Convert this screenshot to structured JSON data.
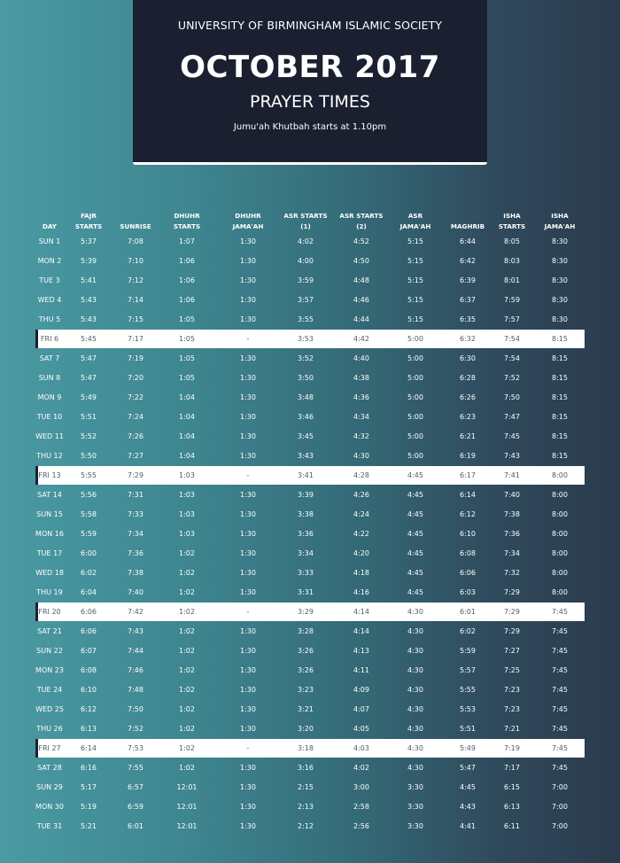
{
  "header": {
    "organization": "UNIVERSITY OF BIRMINGHAM ISLAMIC SOCIETY",
    "month": "OCTOBER 2017",
    "subtitle": "PRAYER TIMES",
    "jumuah_note": "Jumu'ah Khutbah starts at 1.10pm"
  },
  "colors": {
    "header_bg": "#1b2031",
    "friday_row_bg": "#ffffff",
    "background_left": "#4a9aa4",
    "background_right": "#2b3a4d"
  },
  "columns": [
    [
      "DAY"
    ],
    [
      "FAJR",
      "STARTS"
    ],
    [
      "SUNRISE"
    ],
    [
      "DHUHR",
      "STARTS"
    ],
    [
      "DHUHR",
      "JAMA'AH"
    ],
    [
      "ASR STARTS",
      "(1)"
    ],
    [
      "ASR STARTS",
      "(2)"
    ],
    [
      "ASR",
      "JAMA'AH"
    ],
    [
      "MAGHRIB"
    ],
    [
      "ISHA",
      "STARTS"
    ],
    [
      "ISHA",
      "JAMA'AH"
    ]
  ],
  "rows": [
    {
      "day": "SUN 1",
      "fajr": "5:37",
      "sunrise": "7:08",
      "dhuhr": "1:07",
      "dhuhr_jamaah": "1:30",
      "asr1": "4:02",
      "asr2": "4:52",
      "asr_jamaah": "5:15",
      "maghrib": "6:44",
      "isha": "8:05",
      "isha_jamaah": "8:30",
      "friday": false
    },
    {
      "day": "MON 2",
      "fajr": "5:39",
      "sunrise": "7:10",
      "dhuhr": "1:06",
      "dhuhr_jamaah": "1:30",
      "asr1": "4:00",
      "asr2": "4:50",
      "asr_jamaah": "5:15",
      "maghrib": "6:42",
      "isha": "8:03",
      "isha_jamaah": "8:30",
      "friday": false
    },
    {
      "day": "TUE 3",
      "fajr": "5:41",
      "sunrise": "7:12",
      "dhuhr": "1:06",
      "dhuhr_jamaah": "1:30",
      "asr1": "3:59",
      "asr2": "4:48",
      "asr_jamaah": "5:15",
      "maghrib": "6:39",
      "isha": "8:01",
      "isha_jamaah": "8:30",
      "friday": false
    },
    {
      "day": "WED 4",
      "fajr": "5:43",
      "sunrise": "7:14",
      "dhuhr": "1:06",
      "dhuhr_jamaah": "1:30",
      "asr1": "3:57",
      "asr2": "4:46",
      "asr_jamaah": "5:15",
      "maghrib": "6:37",
      "isha": "7:59",
      "isha_jamaah": "8:30",
      "friday": false
    },
    {
      "day": "THU 5",
      "fajr": "5:43",
      "sunrise": "7:15",
      "dhuhr": "1:05",
      "dhuhr_jamaah": "1:30",
      "asr1": "3:55",
      "asr2": "4:44",
      "asr_jamaah": "5:15",
      "maghrib": "6:35",
      "isha": "7:57",
      "isha_jamaah": "8:30",
      "friday": false
    },
    {
      "day": "FRI 6",
      "fajr": "5:45",
      "sunrise": "7:17",
      "dhuhr": "1:05",
      "dhuhr_jamaah": "-",
      "asr1": "3:53",
      "asr2": "4:42",
      "asr_jamaah": "5:00",
      "maghrib": "6:32",
      "isha": "7:54",
      "isha_jamaah": "8:15",
      "friday": true
    },
    {
      "day": "SAT 7",
      "fajr": "5:47",
      "sunrise": "7:19",
      "dhuhr": "1:05",
      "dhuhr_jamaah": "1:30",
      "asr1": "3:52",
      "asr2": "4:40",
      "asr_jamaah": "5:00",
      "maghrib": "6:30",
      "isha": "7:54",
      "isha_jamaah": "8:15",
      "friday": false
    },
    {
      "day": "SUN 8",
      "fajr": "5:47",
      "sunrise": "7:20",
      "dhuhr": "1:05",
      "dhuhr_jamaah": "1:30",
      "asr1": "3:50",
      "asr2": "4:38",
      "asr_jamaah": "5:00",
      "maghrib": "6:28",
      "isha": "7:52",
      "isha_jamaah": "8:15",
      "friday": false
    },
    {
      "day": "MON 9",
      "fajr": "5:49",
      "sunrise": "7:22",
      "dhuhr": "1:04",
      "dhuhr_jamaah": "1:30",
      "asr1": "3:48",
      "asr2": "4:36",
      "asr_jamaah": "5:00",
      "maghrib": "6:26",
      "isha": "7:50",
      "isha_jamaah": "8:15",
      "friday": false
    },
    {
      "day": "TUE 10",
      "fajr": "5:51",
      "sunrise": "7:24",
      "dhuhr": "1:04",
      "dhuhr_jamaah": "1:30",
      "asr1": "3:46",
      "asr2": "4:34",
      "asr_jamaah": "5:00",
      "maghrib": "6:23",
      "isha": "7:47",
      "isha_jamaah": "8:15",
      "friday": false
    },
    {
      "day": "WED 11",
      "fajr": "5:52",
      "sunrise": "7:26",
      "dhuhr": "1:04",
      "dhuhr_jamaah": "1:30",
      "asr1": "3:45",
      "asr2": "4:32",
      "asr_jamaah": "5:00",
      "maghrib": "6:21",
      "isha": "7:45",
      "isha_jamaah": "8:15",
      "friday": false
    },
    {
      "day": "THU 12",
      "fajr": "5:50",
      "sunrise": "7:27",
      "dhuhr": "1:04",
      "dhuhr_jamaah": "1:30",
      "asr1": "3:43",
      "asr2": "4:30",
      "asr_jamaah": "5:00",
      "maghrib": "6:19",
      "isha": "7:43",
      "isha_jamaah": "8:15",
      "friday": false
    },
    {
      "day": "FRI 13",
      "fajr": "5:55",
      "sunrise": "7:29",
      "dhuhr": "1:03",
      "dhuhr_jamaah": "-",
      "asr1": "3:41",
      "asr2": "4:28",
      "asr_jamaah": "4:45",
      "maghrib": "6:17",
      "isha": "7:41",
      "isha_jamaah": "8:00",
      "friday": true
    },
    {
      "day": "SAT 14",
      "fajr": "5:56",
      "sunrise": "7:31",
      "dhuhr": "1:03",
      "dhuhr_jamaah": "1:30",
      "asr1": "3:39",
      "asr2": "4:26",
      "asr_jamaah": "4:45",
      "maghrib": "6:14",
      "isha": "7:40",
      "isha_jamaah": "8:00",
      "friday": false
    },
    {
      "day": "SUN 15",
      "fajr": "5:58",
      "sunrise": "7:33",
      "dhuhr": "1:03",
      "dhuhr_jamaah": "1:30",
      "asr1": "3:38",
      "asr2": "4:24",
      "asr_jamaah": "4:45",
      "maghrib": "6:12",
      "isha": "7:38",
      "isha_jamaah": "8:00",
      "friday": false
    },
    {
      "day": "MON 16",
      "fajr": "5:59",
      "sunrise": "7:34",
      "dhuhr": "1:03",
      "dhuhr_jamaah": "1:30",
      "asr1": "3:36",
      "asr2": "4:22",
      "asr_jamaah": "4:45",
      "maghrib": "6:10",
      "isha": "7:36",
      "isha_jamaah": "8:00",
      "friday": false
    },
    {
      "day": "TUE 17",
      "fajr": "6:00",
      "sunrise": "7:36",
      "dhuhr": "1:02",
      "dhuhr_jamaah": "1:30",
      "asr1": "3:34",
      "asr2": "4:20",
      "asr_jamaah": "4:45",
      "maghrib": "6:08",
      "isha": "7:34",
      "isha_jamaah": "8:00",
      "friday": false
    },
    {
      "day": "WED 18",
      "fajr": "6:02",
      "sunrise": "7:38",
      "dhuhr": "1:02",
      "dhuhr_jamaah": "1:30",
      "asr1": "3:33",
      "asr2": "4:18",
      "asr_jamaah": "4:45",
      "maghrib": "6:06",
      "isha": "7:32",
      "isha_jamaah": "8:00",
      "friday": false
    },
    {
      "day": "THU 19",
      "fajr": "6:04",
      "sunrise": "7:40",
      "dhuhr": "1:02",
      "dhuhr_jamaah": "1:30",
      "asr1": "3:31",
      "asr2": "4:16",
      "asr_jamaah": "4:45",
      "maghrib": "6:03",
      "isha": "7:29",
      "isha_jamaah": "8:00",
      "friday": false
    },
    {
      "day": "FRI 20",
      "fajr": "6:06",
      "sunrise": "7:42",
      "dhuhr": "1:02",
      "dhuhr_jamaah": "-",
      "asr1": "3:29",
      "asr2": "4:14",
      "asr_jamaah": "4:30",
      "maghrib": "6:01",
      "isha": "7:29",
      "isha_jamaah": "7:45",
      "friday": true
    },
    {
      "day": "SAT 21",
      "fajr": "6:06",
      "sunrise": "7:43",
      "dhuhr": "1:02",
      "dhuhr_jamaah": "1:30",
      "asr1": "3:28",
      "asr2": "4:14",
      "asr_jamaah": "4:30",
      "maghrib": "6:02",
      "isha": "7:29",
      "isha_jamaah": "7:45",
      "friday": false
    },
    {
      "day": "SUN 22",
      "fajr": "6:07",
      "sunrise": "7:44",
      "dhuhr": "1:02",
      "dhuhr_jamaah": "1:30",
      "asr1": "3:26",
      "asr2": "4:13",
      "asr_jamaah": "4:30",
      "maghrib": "5:59",
      "isha": "7:27",
      "isha_jamaah": "7:45",
      "friday": false
    },
    {
      "day": "MON 23",
      "fajr": "6:08",
      "sunrise": "7:46",
      "dhuhr": "1:02",
      "dhuhr_jamaah": "1:30",
      "asr1": "3:26",
      "asr2": "4:11",
      "asr_jamaah": "4:30",
      "maghrib": "5:57",
      "isha": "7:25",
      "isha_jamaah": "7:45",
      "friday": false
    },
    {
      "day": "TUE 24",
      "fajr": "6:10",
      "sunrise": "7:48",
      "dhuhr": "1:02",
      "dhuhr_jamaah": "1:30",
      "asr1": "3:23",
      "asr2": "4:09",
      "asr_jamaah": "4:30",
      "maghrib": "5:55",
      "isha": "7:23",
      "isha_jamaah": "7:45",
      "friday": false
    },
    {
      "day": "WED 25",
      "fajr": "6:12",
      "sunrise": "7:50",
      "dhuhr": "1:02",
      "dhuhr_jamaah": "1:30",
      "asr1": "3:21",
      "asr2": "4:07",
      "asr_jamaah": "4:30",
      "maghrib": "5:53",
      "isha": "7:23",
      "isha_jamaah": "7:45",
      "friday": false
    },
    {
      "day": "THU 26",
      "fajr": "6:13",
      "sunrise": "7:52",
      "dhuhr": "1:02",
      "dhuhr_jamaah": "1:30",
      "asr1": "3:20",
      "asr2": "4:05",
      "asr_jamaah": "4:30",
      "maghrib": "5:51",
      "isha": "7:21",
      "isha_jamaah": "7:45",
      "friday": false
    },
    {
      "day": "FRI 27",
      "fajr": "6:14",
      "sunrise": "7:53",
      "dhuhr": "1:02",
      "dhuhr_jamaah": "-",
      "asr1": "3:18",
      "asr2": "4:03",
      "asr_jamaah": "4:30",
      "maghrib": "5:49",
      "isha": "7:19",
      "isha_jamaah": "7:45",
      "friday": true
    },
    {
      "day": "SAT 28",
      "fajr": "6:16",
      "sunrise": "7:55",
      "dhuhr": "1:02",
      "dhuhr_jamaah": "1:30",
      "asr1": "3:16",
      "asr2": "4:02",
      "asr_jamaah": "4:30",
      "maghrib": "5:47",
      "isha": "7:17",
      "isha_jamaah": "7:45",
      "friday": false
    },
    {
      "day": "SUN 29",
      "fajr": "5:17",
      "sunrise": "6:57",
      "dhuhr": "12:01",
      "dhuhr_jamaah": "1:30",
      "asr1": "2:15",
      "asr2": "3:00",
      "asr_jamaah": "3:30",
      "maghrib": "4:45",
      "isha": "6:15",
      "isha_jamaah": "7:00",
      "friday": false
    },
    {
      "day": "MON 30",
      "fajr": "5:19",
      "sunrise": "6:59",
      "dhuhr": "12:01",
      "dhuhr_jamaah": "1:30",
      "asr1": "2:13",
      "asr2": "2:58",
      "asr_jamaah": "3:30",
      "maghrib": "4:43",
      "isha": "6:13",
      "isha_jamaah": "7:00",
      "friday": false
    },
    {
      "day": "TUE 31",
      "fajr": "5:21",
      "sunrise": "6:01",
      "dhuhr": "12:01",
      "dhuhr_jamaah": "1:30",
      "asr1": "2:12",
      "asr2": "2:56",
      "asr_jamaah": "3:30",
      "maghrib": "4:41",
      "isha": "6:11",
      "isha_jamaah": "7:00",
      "friday": false
    }
  ]
}
